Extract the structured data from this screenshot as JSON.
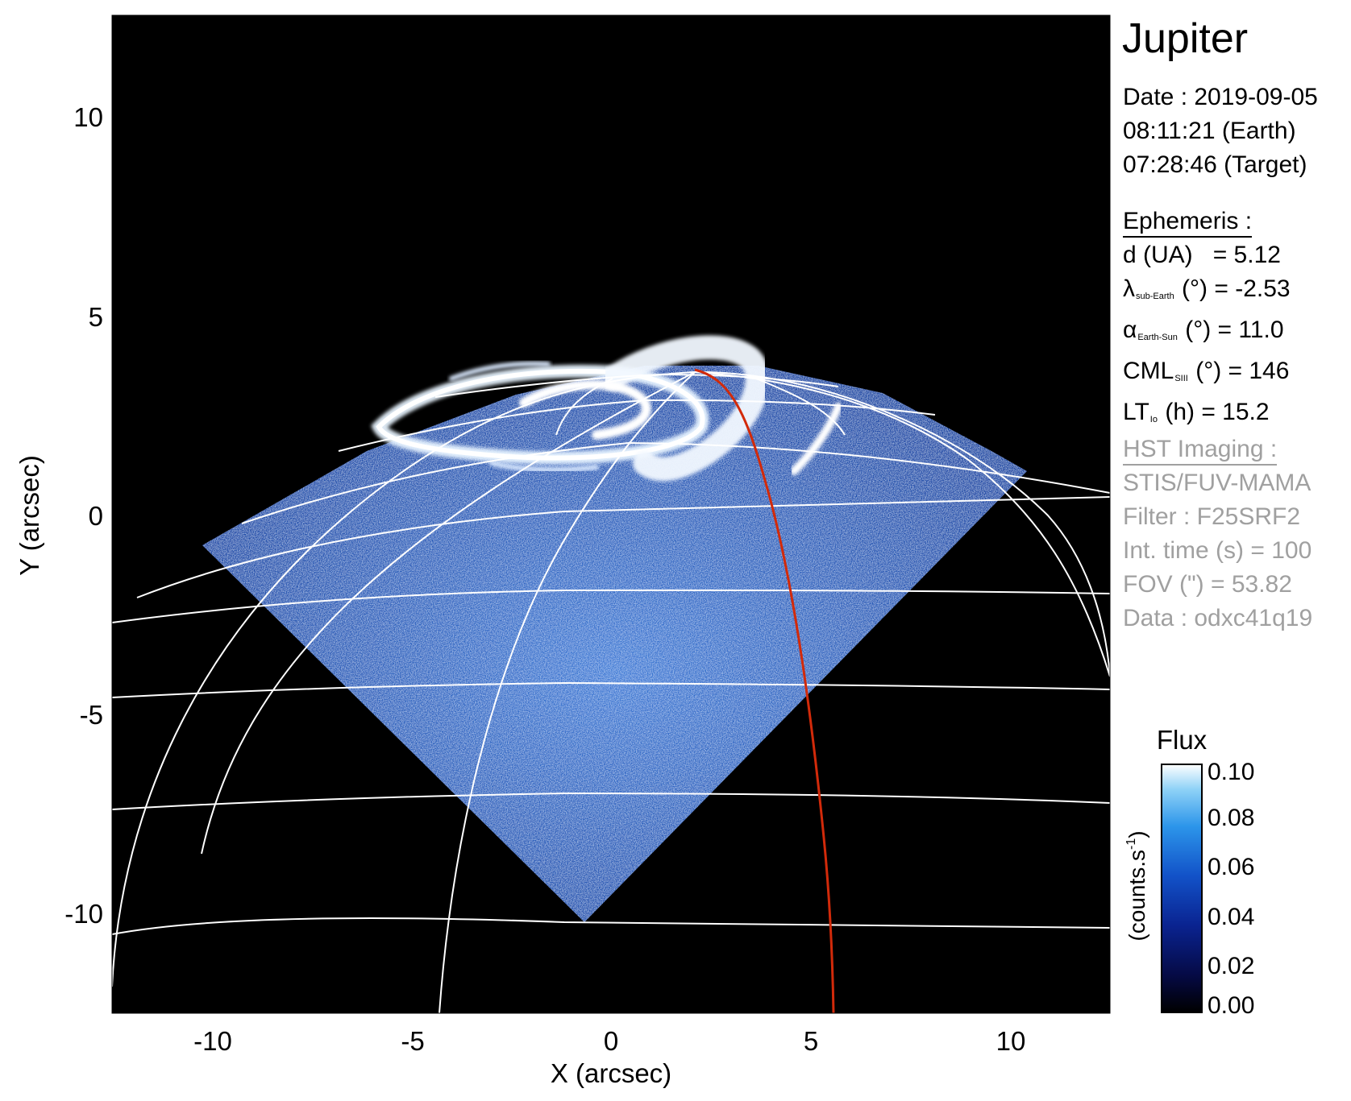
{
  "title": "Jupiter",
  "date": {
    "line1": "Date : 2019-09-05",
    "line2": "08:11:21 (Earth)",
    "line3": "07:28:46 (Target)"
  },
  "ephemeris": {
    "header": "Ephemeris :",
    "d_label": "d (UA)",
    "d_value": "= 5.12",
    "lambda_symbol": "λ",
    "lambda_sub": "sub-Earth",
    "lambda_value": "(°) = -2.53",
    "alpha_symbol": "α",
    "alpha_sub": "Earth-Sun",
    "alpha_value": "(°) = 11.0",
    "cml_label": "CML",
    "cml_sub": "SIII",
    "cml_value": "(°) = 146",
    "lt_label": "LT",
    "lt_sub": "Io",
    "lt_value": "(h) = 15.2"
  },
  "imaging": {
    "header": "HST Imaging :",
    "instrument": "STIS/FUV-MAMA",
    "filter": "Filter : F25SRF2",
    "int_time": "Int. time (s) = 100",
    "fov": "FOV (\") = 53.82",
    "data": "Data : odxc41q19"
  },
  "plot": {
    "xlabel": "X (arcsec)",
    "ylabel": "Y (arcsec)",
    "xticks": [
      "-10",
      "-5",
      "0",
      "5",
      "10"
    ],
    "yticks": [
      "10",
      "5",
      "0",
      "-5",
      "-10"
    ],
    "xlim": [
      -12.5,
      12.5
    ],
    "ylim": [
      -12.5,
      12.5
    ]
  },
  "colorbar": {
    "title": "Flux",
    "unit": "(counts.s",
    "unit_exp": "-1",
    "unit_close": ")",
    "ticks": [
      "0.10",
      "0.08",
      "0.06",
      "0.04",
      "0.02",
      "0.00"
    ],
    "range": [
      0.0,
      0.1
    ]
  },
  "colors": {
    "background": "#000000",
    "grid": "#ffffff",
    "meridian_highlight": "#d22a0a",
    "emission": "#2a6ad8",
    "secondary_text": "#a0a0a0"
  }
}
